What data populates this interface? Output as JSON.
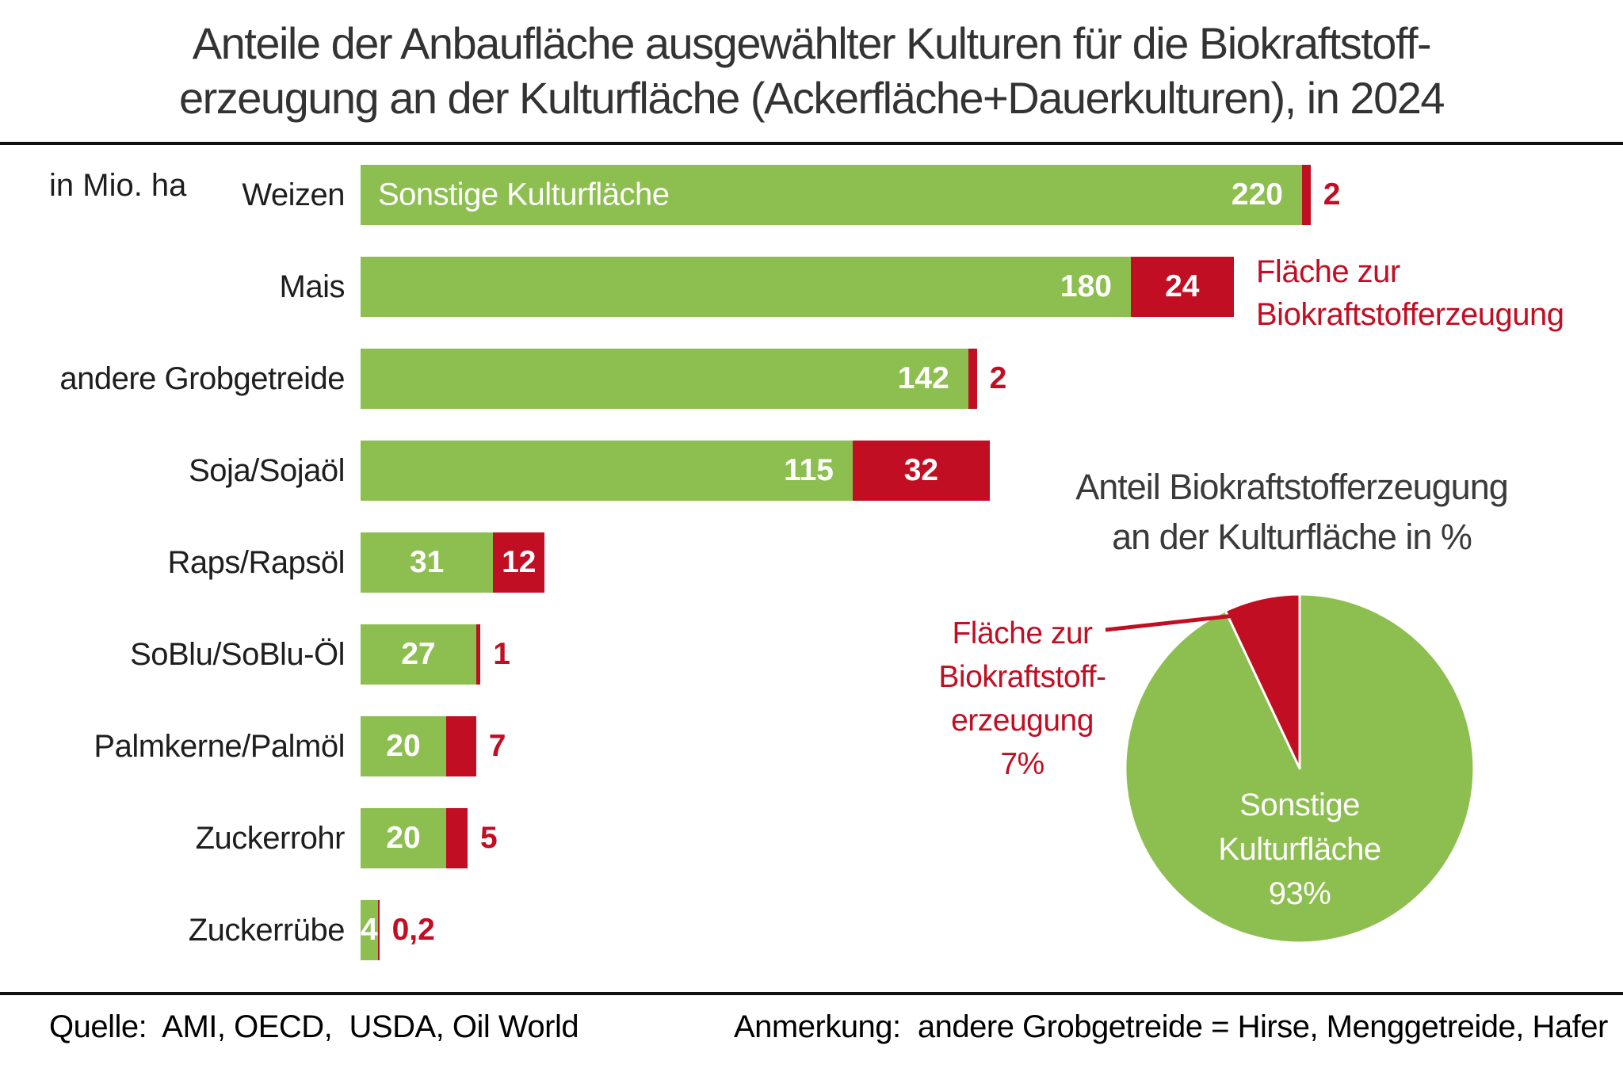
{
  "title_lines": [
    "Anteile der Anbaufläche ausgewählter Kulturen für die Biokraftstoff-",
    "erzeugung an der Kulturfläche (Ackerfläche+Dauerkulturen), in 2024"
  ],
  "unit_label": "in Mio. ha",
  "bar_section": {
    "first_bar_inner_label": "Sonstige Kulturfläche",
    "red_legend_lines": [
      "Fläche zur",
      "Biokraftstofferzeugung"
    ]
  },
  "pie_section": {
    "title_lines": [
      "Anteil Biokraftstofferzeugung",
      "an der Kulturfläche in %"
    ],
    "red_label_lines": [
      "Fläche zur",
      "Biokraftstoff-",
      "erzeugung",
      "7%"
    ],
    "green_label_lines": [
      "Sonstige",
      "Kulturfläche",
      "93%"
    ]
  },
  "footer": {
    "source": "Quelle:  AMI, OECD,  USDA, Oil World",
    "note": "Anmerkung:  andere Grobgetreide = Hirse, Menggetreide, Hafer"
  },
  "colors": {
    "green": "#8DBE50",
    "red": "#C10E22",
    "title_dark": "#333333"
  },
  "chart_data": [
    {
      "type": "bar",
      "orientation": "horizontal",
      "stacked": true,
      "title": "Anteile der Anbaufläche ausgewählter Kulturen für die Biokraftstofferzeugung an der Kulturfläche (Ackerfläche+Dauerkulturen), in 2024",
      "unit": "in Mio. ha",
      "categories": [
        "Weizen",
        "Mais",
        "andere Grobgetreide",
        "Soja/Sojaöl",
        "Raps/Rapsöl",
        "SoBlu/SoBlu-Öl",
        "Palmkerne/Palmöl",
        "Zuckerrohr",
        "Zuckerrübe"
      ],
      "series": [
        {
          "name": "Sonstige Kulturfläche",
          "color": "#8DBE50",
          "values": [
            220,
            180,
            142,
            115,
            31,
            27,
            20,
            20,
            4
          ]
        },
        {
          "name": "Fläche zur Biokraftstofferzeugung",
          "color": "#C10E22",
          "values": [
            2,
            24,
            2,
            32,
            12,
            1,
            7,
            5,
            0.2
          ]
        }
      ],
      "xlim": [
        0,
        230
      ],
      "grid": false,
      "legend_position": "right-of-second-bar"
    },
    {
      "type": "pie",
      "title": "Anteil Biokraftstofferzeugung an der Kulturfläche in %",
      "labels": [
        "Sonstige Kulturfläche",
        "Fläche zur Biokraftstofferzeugung"
      ],
      "values": [
        93,
        7
      ],
      "unit": "%",
      "colors": [
        "#8DBE50",
        "#C10E22"
      ]
    }
  ]
}
